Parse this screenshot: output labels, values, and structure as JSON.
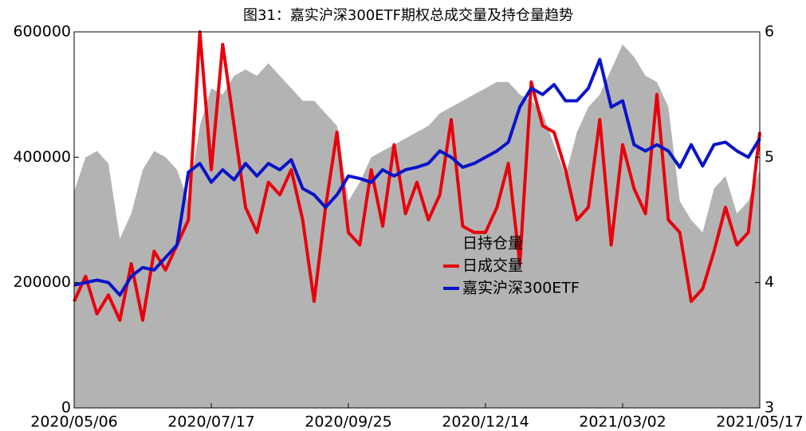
{
  "chart_data": {
    "type": "dual-axis-line-area",
    "title": "图31：嘉实沪深300ETF期权总成交量及持仓量趋势",
    "categories": [
      "2020/05/06",
      null,
      null,
      null,
      null,
      null,
      null,
      null,
      null,
      null,
      null,
      null,
      "2020/07/17",
      null,
      null,
      null,
      null,
      null,
      null,
      null,
      null,
      null,
      null,
      null,
      "2020/09/25",
      null,
      null,
      null,
      null,
      null,
      null,
      null,
      null,
      null,
      null,
      null,
      "2020/12/14",
      null,
      null,
      null,
      null,
      null,
      null,
      null,
      null,
      null,
      null,
      null,
      "2021/03/02",
      null,
      null,
      null,
      null,
      null,
      null,
      null,
      null,
      null,
      null,
      null,
      "2021/05/17"
    ],
    "series": [
      {
        "name": "日持仓量",
        "kind": "area",
        "color": "#b3b3b3",
        "axis": "y",
        "values": [
          345000,
          400000,
          410000,
          390000,
          270000,
          310000,
          380000,
          410000,
          400000,
          380000,
          330000,
          450000,
          510000,
          500000,
          530000,
          540000,
          530000,
          550000,
          530000,
          510000,
          490000,
          490000,
          470000,
          450000,
          330000,
          360000,
          400000,
          410000,
          420000,
          430000,
          440000,
          450000,
          470000,
          480000,
          490000,
          500000,
          510000,
          520000,
          520000,
          500000,
          490000,
          470000,
          420000,
          370000,
          440000,
          480000,
          500000,
          540000,
          580000,
          560000,
          530000,
          520000,
          480000,
          330000,
          300000,
          280000,
          350000,
          370000,
          310000,
          330000,
          380000
        ]
      },
      {
        "name": "日成交量",
        "kind": "line",
        "color": "#e8000b",
        "axis": "y",
        "values": [
          170000,
          210000,
          150000,
          180000,
          140000,
          230000,
          140000,
          250000,
          220000,
          260000,
          300000,
          600000,
          380000,
          580000,
          450000,
          320000,
          280000,
          360000,
          340000,
          380000,
          300000,
          170000,
          320000,
          440000,
          280000,
          260000,
          380000,
          290000,
          420000,
          310000,
          360000,
          300000,
          340000,
          460000,
          290000,
          280000,
          280000,
          320000,
          390000,
          230000,
          520000,
          450000,
          440000,
          380000,
          300000,
          320000,
          460000,
          260000,
          420000,
          350000,
          310000,
          500000,
          300000,
          280000,
          170000,
          190000,
          250000,
          320000,
          260000,
          280000,
          440000
        ]
      },
      {
        "name": "嘉实沪深300ETF",
        "kind": "line",
        "color": "#0a14c8",
        "axis": "y2",
        "values": [
          3.98,
          4.0,
          4.02,
          4.0,
          3.9,
          4.05,
          4.12,
          4.1,
          4.2,
          4.3,
          4.88,
          4.95,
          4.8,
          4.9,
          4.82,
          4.95,
          4.85,
          4.95,
          4.9,
          4.98,
          4.75,
          4.7,
          4.6,
          4.7,
          4.85,
          4.83,
          4.8,
          4.9,
          4.85,
          4.9,
          4.92,
          4.95,
          5.05,
          5.0,
          4.92,
          4.95,
          5.0,
          5.05,
          5.12,
          5.4,
          5.55,
          5.5,
          5.58,
          5.45,
          5.45,
          5.55,
          5.78,
          5.4,
          5.45,
          5.1,
          5.05,
          5.1,
          5.05,
          4.92,
          5.1,
          4.93,
          5.1,
          5.12,
          5.05,
          5.0,
          5.15
        ]
      }
    ],
    "ylim": [
      0,
      600000
    ],
    "yticks": [
      0,
      200000,
      400000,
      600000
    ],
    "y2lim": [
      3,
      6
    ],
    "y2ticks": [
      3,
      4,
      5,
      6
    ],
    "grid": false
  }
}
